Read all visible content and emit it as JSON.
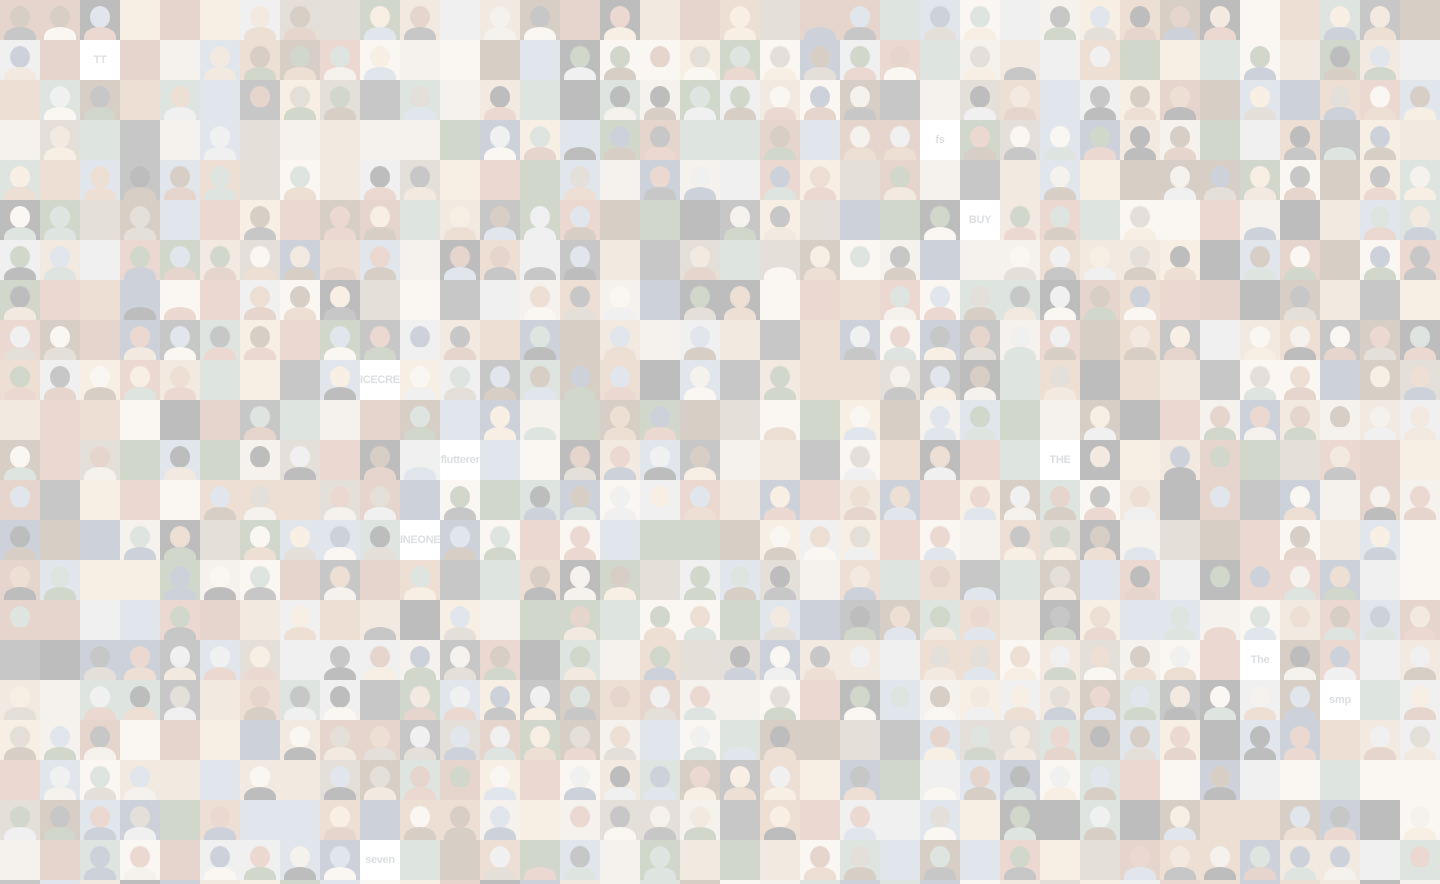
{
  "mosaic": {
    "tile_labels": [
      {
        "text": "fs",
        "row": 3,
        "col": 23
      },
      {
        "text": "ICECREAM",
        "row": 9,
        "col": 9
      },
      {
        "text": "INEONEZ",
        "row": 13,
        "col": 10
      },
      {
        "text": "flutterer",
        "row": 11,
        "col": 11
      },
      {
        "text": "THE BLUES",
        "row": 11,
        "col": 26
      },
      {
        "text": "The League",
        "row": 16,
        "col": 31
      },
      {
        "text": "seven",
        "row": 21,
        "col": 9
      },
      {
        "text": "smp",
        "row": 17,
        "col": 33
      },
      {
        "text": "BUY",
        "row": 5,
        "col": 24
      },
      {
        "text": "TT",
        "row": 1,
        "col": 2
      }
    ],
    "palette": [
      "#c9a27e",
      "#8a6f5a",
      "#d9c2a7",
      "#5b5b5b",
      "#a8b7c9",
      "#e0d6c8",
      "#7c8b6a",
      "#b5856a",
      "#d3d3d3",
      "#3e3e3e",
      "#e8cdb0",
      "#9fb1a0",
      "#c58f7a",
      "#6d7d94",
      "#f0e6d8",
      "#b0a090"
    ]
  }
}
